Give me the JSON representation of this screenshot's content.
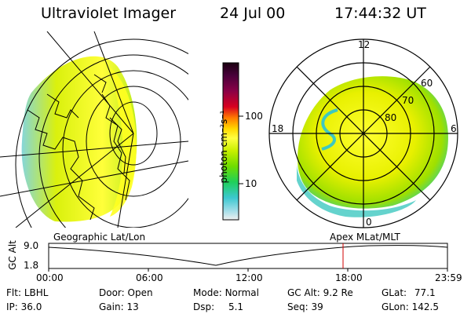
{
  "header": {
    "instrument": "Ultraviolet Imager",
    "date": "24 Jul 00",
    "time": "17:44:32 UT"
  },
  "colorbar": {
    "unit_label": "photon cm⁻²s⁻¹",
    "ticks": [
      "100",
      "10"
    ],
    "colors": [
      "#1a0010",
      "#48003a",
      "#8a0046",
      "#d80020",
      "#ff7a00",
      "#ffd800",
      "#ffff40",
      "#c8f000",
      "#6edc00",
      "#1ecf5a",
      "#3cc8d0",
      "#a0dde8",
      "#f0f0f0"
    ]
  },
  "left_panel": {
    "label": "Geographic Lat/Lon"
  },
  "polar_panel": {
    "label": "Apex MLat/MLT",
    "mlt_labels": {
      "top": "12",
      "left": "18",
      "right": "6",
      "bottom": "0"
    },
    "lat_labels": [
      "60",
      "70",
      "80"
    ]
  },
  "altitude_plot": {
    "ylabel": "GC Alt",
    "y_ticks": [
      "9.0",
      "1.8"
    ],
    "x_ticks": [
      "00:00",
      "06:00",
      "12:00",
      "18:00",
      "23:59"
    ],
    "marker_time": "17:44"
  },
  "status": {
    "flt_label": "Flt:",
    "flt_value": "LBHL",
    "ip_label": "IP:",
    "ip_value": "36.0",
    "door_label": "Door:",
    "door_value": "Open",
    "gain_label": "Gain:",
    "gain_value": "13",
    "mode_label": "Mode:",
    "mode_value": "Normal",
    "dsp_label": "Dsp:",
    "dsp_value": "5.1",
    "gcalt_label": "GC Alt:",
    "gcalt_value": "9.2 Re",
    "seq_label": "Seq:",
    "seq_value": "39",
    "glat_label": "GLat:",
    "glat_value": "77.1",
    "glon_label": "GLon:",
    "glon_value": "142.5"
  }
}
